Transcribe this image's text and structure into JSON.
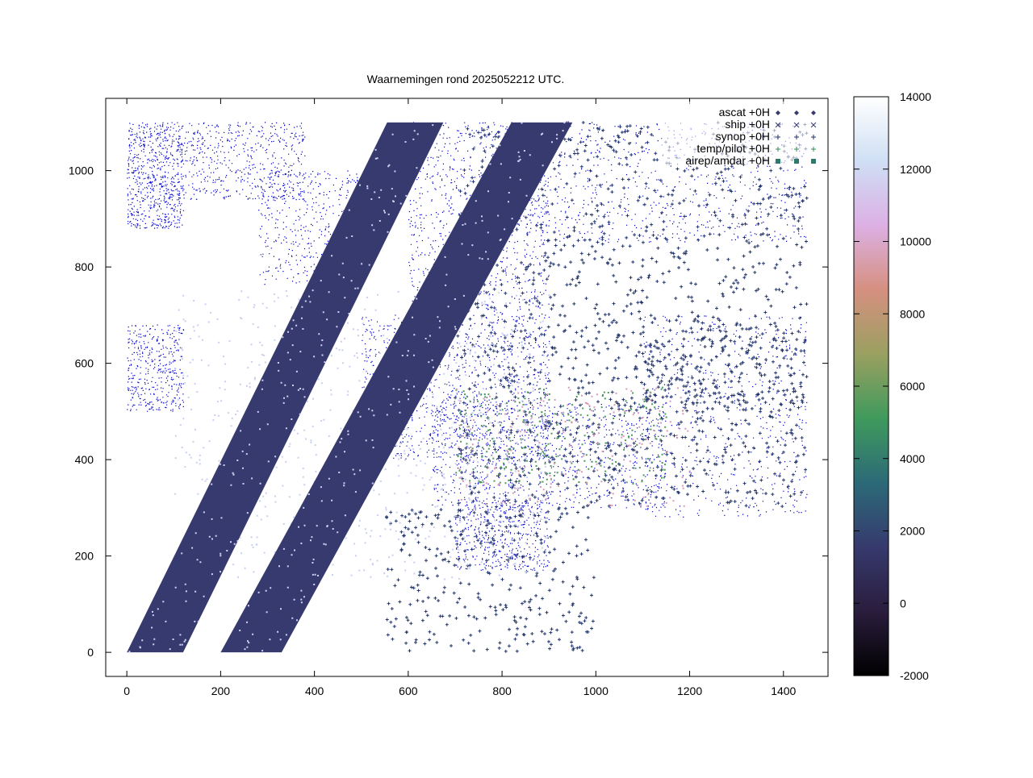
{
  "chart_data": {
    "type": "scatter",
    "title": "Waarnemingen rond 2025052212 UTC.",
    "xlabel": "",
    "ylabel": "",
    "xlim": [
      -45,
      1495
    ],
    "ylim": [
      -50,
      1150
    ],
    "x_ticks": [
      0,
      200,
      400,
      600,
      800,
      1000,
      1200,
      1400
    ],
    "y_ticks": [
      0,
      200,
      400,
      600,
      800,
      1000
    ],
    "grid": false,
    "legend_position": "top-right",
    "series": [
      {
        "name": "ascat +0H",
        "marker": "diamond",
        "color": "#363a6e"
      },
      {
        "name": "ship +0H",
        "marker": "cross",
        "color": "#363a6e"
      },
      {
        "name": "synop +0H",
        "marker": "plus",
        "color": "#22356b"
      },
      {
        "name": "temp/pilot +0H",
        "marker": "plus",
        "color": "#3a8b5c"
      },
      {
        "name": "airep/amdar +0H",
        "marker": "square",
        "color": "#2e7a6a"
      }
    ],
    "ascat_swaths": [
      {
        "bottom": [
          [
            0,
            0
          ],
          [
            120,
            0
          ]
        ],
        "top": [
          [
            555,
            1100
          ],
          [
            675,
            1100
          ]
        ]
      },
      {
        "bottom": [
          [
            200,
            0
          ],
          [
            330,
            0
          ]
        ],
        "top": [
          [
            820,
            1100
          ],
          [
            950,
            1100
          ]
        ]
      }
    ],
    "colorbar": {
      "min": -2000,
      "max": 14000,
      "ticks": [
        -2000,
        0,
        2000,
        4000,
        6000,
        8000,
        10000,
        12000,
        14000
      ],
      "stops": [
        "#000000",
        "#2a1d3d",
        "#363a6e",
        "#2c6a78",
        "#3f9a5c",
        "#9aa060",
        "#d69080",
        "#dcb0e4",
        "#cfdff4",
        "#ffffff"
      ]
    },
    "coast_color": "#0000cc"
  }
}
